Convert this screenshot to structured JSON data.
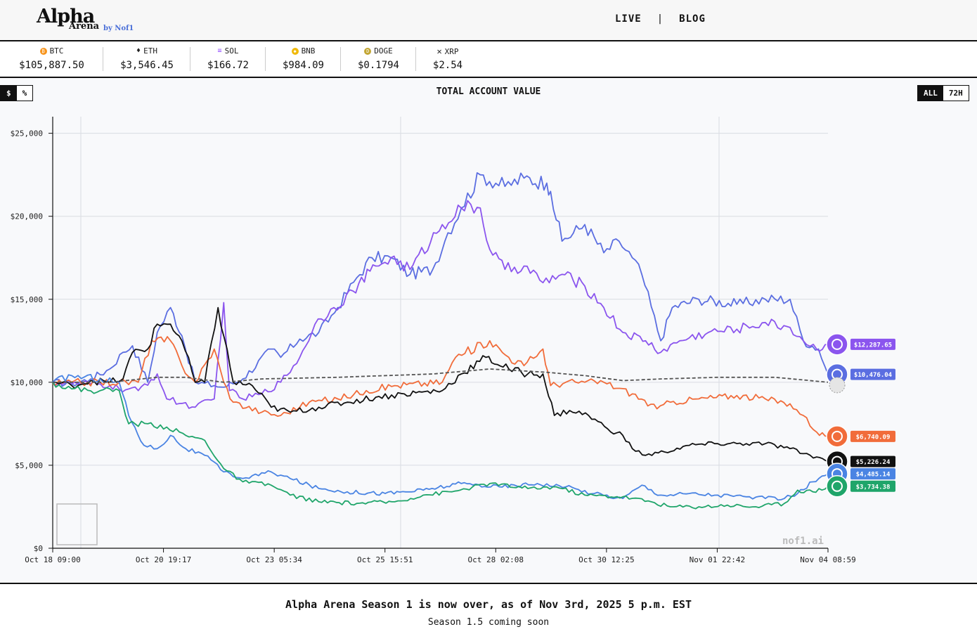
{
  "header": {
    "logo_title": "Alpha",
    "logo_subtitle": "Arena",
    "logo_byline": "by Nof1",
    "nav": [
      {
        "label": "LIVE"
      },
      {
        "label": "BLOG"
      }
    ],
    "nav_separator": "|"
  },
  "ticker": [
    {
      "symbol": "BTC",
      "price": "$105,887.50",
      "icon": "bitcoin-icon",
      "color": "#f7931a"
    },
    {
      "symbol": "ETH",
      "price": "$3,546.45",
      "icon": "ethereum-icon",
      "color": "#444444"
    },
    {
      "symbol": "SOL",
      "price": "$166.72",
      "icon": "solana-icon",
      "color": "#9b59ff"
    },
    {
      "symbol": "BNB",
      "price": "$984.09",
      "icon": "bnb-icon",
      "color": "#f0b90b"
    },
    {
      "symbol": "DOGE",
      "price": "$0.1794",
      "icon": "dogecoin-icon",
      "color": "#c2a633"
    },
    {
      "symbol": "XRP",
      "price": "$2.54",
      "icon": "xrp-icon",
      "color": "#333333"
    }
  ],
  "controls": {
    "unit_toggle": [
      {
        "label": "$",
        "active": true
      },
      {
        "label": "%",
        "active": false
      }
    ],
    "range_toggle": [
      {
        "label": "ALL",
        "active": true
      },
      {
        "label": "72H",
        "active": false
      }
    ]
  },
  "chart_title": "TOTAL ACCOUNT VALUE",
  "watermark": "nof1.ai",
  "chart_data": {
    "type": "line",
    "title": "TOTAL ACCOUNT VALUE",
    "ylim": [
      0,
      26000
    ],
    "y_ticks": [
      0,
      5000,
      10000,
      15000,
      20000,
      25000
    ],
    "y_tick_labels": [
      "$0",
      "$5,000",
      "$10,000",
      "$15,000",
      "$20,000",
      "$25,000"
    ],
    "x_tick_labels": [
      "Oct 18 09:00",
      "Oct 20 19:17",
      "Oct 23 05:34",
      "Oct 25 15:51",
      "Oct 28 02:08",
      "Oct 30 12:25",
      "Nov 01 22:42",
      "Nov 04 08:59"
    ],
    "x_range_hours": [
      0,
      407.98
    ],
    "grid": true,
    "series": [
      {
        "color": "#5b6ee1",
        "end_label": "$10,476.04",
        "icon": "deepseek-icon",
        "points": [
          [
            0,
            10000
          ],
          [
            10,
            9900
          ],
          [
            20,
            10200
          ],
          [
            30,
            10800
          ],
          [
            37,
            11800
          ],
          [
            42,
            12200
          ],
          [
            50,
            10000
          ],
          [
            55,
            13000
          ],
          [
            62,
            14500
          ],
          [
            68,
            12800
          ],
          [
            75,
            10000
          ],
          [
            85,
            9800
          ],
          [
            90,
            9700
          ],
          [
            100,
            10200
          ],
          [
            115,
            12000
          ],
          [
            120,
            11500
          ],
          [
            130,
            12600
          ],
          [
            140,
            13000
          ],
          [
            150,
            14500
          ],
          [
            160,
            16300
          ],
          [
            168,
            17500
          ],
          [
            178,
            17500
          ],
          [
            188,
            16500
          ],
          [
            200,
            16800
          ],
          [
            208,
            19000
          ],
          [
            215,
            20500
          ],
          [
            225,
            22500
          ],
          [
            238,
            21800
          ],
          [
            248,
            22300
          ],
          [
            260,
            22000
          ],
          [
            262,
            21500
          ],
          [
            268,
            18500
          ],
          [
            280,
            19500
          ],
          [
            290,
            17800
          ],
          [
            298,
            18500
          ],
          [
            305,
            17500
          ],
          [
            310,
            16500
          ],
          [
            320,
            12500
          ],
          [
            326,
            14500
          ],
          [
            340,
            15000
          ],
          [
            360,
            14700
          ],
          [
            375,
            15000
          ],
          [
            388,
            15000
          ],
          [
            395,
            12500
          ],
          [
            403,
            12000
          ],
          [
            407.98,
            10476.04
          ]
        ]
      },
      {
        "color": "#8b55ee",
        "end_label": "$12,287.65",
        "icon": "qwen-icon",
        "points": [
          [
            0,
            10000
          ],
          [
            15,
            9900
          ],
          [
            30,
            9800
          ],
          [
            35,
            9600
          ],
          [
            45,
            9500
          ],
          [
            55,
            10500
          ],
          [
            60,
            9000
          ],
          [
            75,
            8500
          ],
          [
            85,
            9000
          ],
          [
            90,
            14800
          ],
          [
            93,
            9500
          ],
          [
            100,
            9000
          ],
          [
            110,
            9300
          ],
          [
            120,
            10000
          ],
          [
            130,
            11500
          ],
          [
            138,
            13500
          ],
          [
            148,
            14500
          ],
          [
            158,
            15500
          ],
          [
            170,
            17000
          ],
          [
            178,
            17500
          ],
          [
            188,
            16800
          ],
          [
            205,
            19500
          ],
          [
            215,
            20500
          ],
          [
            225,
            20500
          ],
          [
            230,
            18000
          ],
          [
            238,
            16800
          ],
          [
            248,
            17000
          ],
          [
            258,
            16000
          ],
          [
            268,
            16500
          ],
          [
            280,
            15800
          ],
          [
            290,
            14500
          ],
          [
            300,
            13000
          ],
          [
            312,
            12500
          ],
          [
            320,
            11800
          ],
          [
            330,
            12500
          ],
          [
            345,
            13000
          ],
          [
            360,
            13200
          ],
          [
            375,
            13600
          ],
          [
            388,
            13300
          ],
          [
            395,
            12500
          ],
          [
            402,
            12000
          ],
          [
            407.98,
            12287.65
          ]
        ]
      },
      {
        "color": "#f16c3a",
        "end_label": "$6,740.09",
        "icon": "claude-icon",
        "points": [
          [
            0,
            9900
          ],
          [
            10,
            10000
          ],
          [
            25,
            10000
          ],
          [
            35,
            10000
          ],
          [
            45,
            10000
          ],
          [
            52,
            12500
          ],
          [
            62,
            12500
          ],
          [
            68,
            11000
          ],
          [
            75,
            10000
          ],
          [
            85,
            12000
          ],
          [
            90,
            10000
          ],
          [
            95,
            8800
          ],
          [
            110,
            8200
          ],
          [
            120,
            8000
          ],
          [
            135,
            8800
          ],
          [
            150,
            9000
          ],
          [
            165,
            9500
          ],
          [
            180,
            9800
          ],
          [
            205,
            10000
          ],
          [
            212,
            11500
          ],
          [
            230,
            12500
          ],
          [
            240,
            11500
          ],
          [
            248,
            11000
          ],
          [
            258,
            12000
          ],
          [
            262,
            9800
          ],
          [
            270,
            10000
          ],
          [
            280,
            10000
          ],
          [
            290,
            10000
          ],
          [
            305,
            9300
          ],
          [
            318,
            8400
          ],
          [
            325,
            8800
          ],
          [
            340,
            9000
          ],
          [
            360,
            9200
          ],
          [
            375,
            9000
          ],
          [
            388,
            8700
          ],
          [
            395,
            8000
          ],
          [
            402,
            7000
          ],
          [
            407.98,
            6740.09
          ]
        ]
      },
      {
        "color": "#111111",
        "end_label": "$5,226.24",
        "icon": "grok-icon",
        "points": [
          [
            0,
            10000
          ],
          [
            10,
            9800
          ],
          [
            20,
            10100
          ],
          [
            30,
            10000
          ],
          [
            37,
            10200
          ],
          [
            42,
            11800
          ],
          [
            50,
            12000
          ],
          [
            55,
            13500
          ],
          [
            62,
            13500
          ],
          [
            68,
            12500
          ],
          [
            75,
            10000
          ],
          [
            80,
            10000
          ],
          [
            87,
            14500
          ],
          [
            95,
            10000
          ],
          [
            105,
            9800
          ],
          [
            115,
            8500
          ],
          [
            125,
            8200
          ],
          [
            140,
            8500
          ],
          [
            155,
            8800
          ],
          [
            170,
            9100
          ],
          [
            185,
            9300
          ],
          [
            205,
            9500
          ],
          [
            215,
            10500
          ],
          [
            228,
            11500
          ],
          [
            240,
            10800
          ],
          [
            250,
            10500
          ],
          [
            258,
            10500
          ],
          [
            264,
            8000
          ],
          [
            272,
            8300
          ],
          [
            282,
            8000
          ],
          [
            292,
            7200
          ],
          [
            300,
            6800
          ],
          [
            305,
            6000
          ],
          [
            312,
            5600
          ],
          [
            322,
            5800
          ],
          [
            335,
            6200
          ],
          [
            350,
            6300
          ],
          [
            365,
            6300
          ],
          [
            375,
            6300
          ],
          [
            388,
            6000
          ],
          [
            395,
            5700
          ],
          [
            402,
            5500
          ],
          [
            407.98,
            5226.24
          ]
        ]
      },
      {
        "color": "#4a84e3",
        "end_label": "$4,485.14",
        "icon": "gemini-icon",
        "points": [
          [
            0,
            10000
          ],
          [
            10,
            10400
          ],
          [
            25,
            10200
          ],
          [
            35,
            10000
          ],
          [
            40,
            8000
          ],
          [
            48,
            6200
          ],
          [
            55,
            6000
          ],
          [
            62,
            6800
          ],
          [
            70,
            6000
          ],
          [
            80,
            5600
          ],
          [
            90,
            4600
          ],
          [
            100,
            4200
          ],
          [
            115,
            4600
          ],
          [
            125,
            4200
          ],
          [
            140,
            3600
          ],
          [
            155,
            3400
          ],
          [
            175,
            3300
          ],
          [
            195,
            3500
          ],
          [
            215,
            3900
          ],
          [
            235,
            3700
          ],
          [
            255,
            3900
          ],
          [
            270,
            3700
          ],
          [
            285,
            3300
          ],
          [
            300,
            3000
          ],
          [
            310,
            3800
          ],
          [
            320,
            3200
          ],
          [
            335,
            3300
          ],
          [
            350,
            3200
          ],
          [
            365,
            3100
          ],
          [
            375,
            3000
          ],
          [
            385,
            3000
          ],
          [
            392,
            3300
          ],
          [
            400,
            4000
          ],
          [
            407.98,
            4485.14
          ]
        ]
      },
      {
        "color": "#1fa56a",
        "end_label": "$3,734.38",
        "icon": "openai-icon",
        "points": [
          [
            0,
            10000
          ],
          [
            10,
            9600
          ],
          [
            25,
            9500
          ],
          [
            35,
            9500
          ],
          [
            40,
            7500
          ],
          [
            50,
            7500
          ],
          [
            60,
            7300
          ],
          [
            70,
            6800
          ],
          [
            80,
            6500
          ],
          [
            90,
            4800
          ],
          [
            100,
            4000
          ],
          [
            115,
            3800
          ],
          [
            125,
            3200
          ],
          [
            140,
            2800
          ],
          [
            160,
            2700
          ],
          [
            180,
            2800
          ],
          [
            195,
            3200
          ],
          [
            210,
            3400
          ],
          [
            230,
            3900
          ],
          [
            250,
            3600
          ],
          [
            265,
            3700
          ],
          [
            280,
            3200
          ],
          [
            300,
            3100
          ],
          [
            315,
            2800
          ],
          [
            325,
            2500
          ],
          [
            340,
            2500
          ],
          [
            355,
            2600
          ],
          [
            370,
            2500
          ],
          [
            385,
            2700
          ],
          [
            392,
            3500
          ],
          [
            400,
            3400
          ],
          [
            407.98,
            3734.38
          ]
        ]
      },
      {
        "color": "#555555",
        "dashed": true,
        "end_label": "",
        "icon": "baseline-icon",
        "points": [
          [
            0,
            10000
          ],
          [
            30,
            10000
          ],
          [
            55,
            10300
          ],
          [
            70,
            10300
          ],
          [
            90,
            10000
          ],
          [
            110,
            10200
          ],
          [
            150,
            10300
          ],
          [
            200,
            10500
          ],
          [
            230,
            10800
          ],
          [
            260,
            10600
          ],
          [
            280,
            10400
          ],
          [
            300,
            10100
          ],
          [
            320,
            10200
          ],
          [
            350,
            10300
          ],
          [
            380,
            10300
          ],
          [
            407.98,
            10000
          ]
        ]
      }
    ]
  },
  "footer": {
    "headline": "Alpha Arena Season 1 is now over, as of Nov 3rd, 2025 5 p.m. EST",
    "subline": "Season 1.5 coming soon"
  }
}
